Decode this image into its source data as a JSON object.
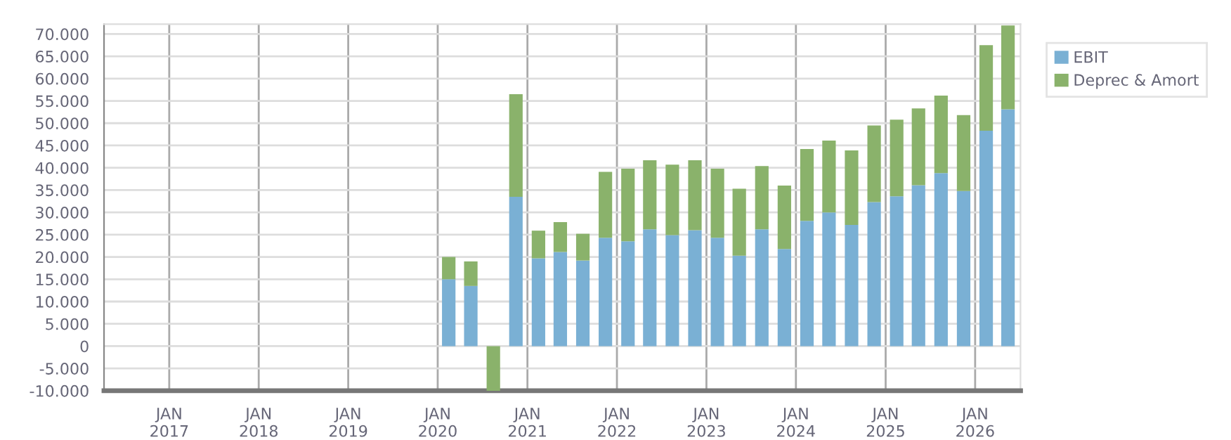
{
  "chart_data": {
    "type": "bar",
    "stacked": true,
    "x": [
      "2020-02-15",
      "2020-05-15",
      "2020-08-15",
      "2020-11-15",
      "2021-02-15",
      "2021-05-15",
      "2021-08-15",
      "2021-11-15",
      "2022-02-15",
      "2022-05-15",
      "2022-08-15",
      "2022-11-15",
      "2023-02-15",
      "2023-05-15",
      "2023-08-15",
      "2023-11-15",
      "2024-02-15",
      "2024-05-15",
      "2024-08-15",
      "2024-11-15",
      "2025-02-15",
      "2025-05-15",
      "2025-08-15",
      "2025-11-15",
      "2026-02-15",
      "2026-05-15"
    ],
    "series": [
      {
        "name": "EBIT",
        "color": "#7ab0d4",
        "values": [
          15000,
          13500,
          0,
          33500,
          19700,
          21100,
          19200,
          24300,
          23500,
          26200,
          24900,
          26000,
          24300,
          20300,
          26200,
          21800,
          28100,
          30000,
          27200,
          32300,
          33600,
          36100,
          38800,
          34800,
          48300,
          53100
        ]
      },
      {
        "name": "Deprec & Amort",
        "color": "#8ab26b",
        "values": [
          5000,
          5500,
          -10000,
          23000,
          6200,
          6700,
          6000,
          14800,
          16300,
          15500,
          15800,
          15700,
          15500,
          15000,
          14200,
          14200,
          16100,
          16100,
          16700,
          17200,
          17200,
          17200,
          17400,
          17000,
          19200,
          18800
        ]
      }
    ],
    "xlim": [
      "2016-04-10",
      "2026-07-05"
    ],
    "xticks": [
      {
        "value": "2017-01-01",
        "label": "JAN\n2017"
      },
      {
        "value": "2018-01-01",
        "label": "JAN\n2018"
      },
      {
        "value": "2019-01-01",
        "label": "JAN\n2019"
      },
      {
        "value": "2020-01-01",
        "label": "JAN\n2020"
      },
      {
        "value": "2021-01-01",
        "label": "JAN\n2021"
      },
      {
        "value": "2022-01-01",
        "label": "JAN\n2022"
      },
      {
        "value": "2023-01-01",
        "label": "JAN\n2023"
      },
      {
        "value": "2024-01-01",
        "label": "JAN\n2024"
      },
      {
        "value": "2025-01-01",
        "label": "JAN\n2025"
      },
      {
        "value": "2026-01-01",
        "label": "JAN\n2026"
      }
    ],
    "ylim": [
      -10000,
      72200
    ],
    "yticks": [
      {
        "value": -10000,
        "label": "-10.000"
      },
      {
        "value": -5000,
        "label": "-5.000"
      },
      0,
      {
        "value": 5000,
        "label": "5.000"
      },
      {
        "value": 10000,
        "label": "10.000"
      },
      {
        "value": 15000,
        "label": "15.000"
      },
      {
        "value": 20000,
        "label": "20.000"
      },
      {
        "value": 25000,
        "label": "25.000"
      },
      {
        "value": 30000,
        "label": "30.000"
      },
      {
        "value": 35000,
        "label": "35.000"
      },
      {
        "value": 40000,
        "label": "40.000"
      },
      {
        "value": 45000,
        "label": "45.000"
      },
      {
        "value": 50000,
        "label": "50.000"
      },
      {
        "value": 55000,
        "label": "55.000"
      },
      {
        "value": 60000,
        "label": "60.000"
      },
      {
        "value": 65000,
        "label": "65.000"
      },
      {
        "value": 70000,
        "label": "70.000"
      }
    ],
    "grid": true,
    "legend": "top right"
  }
}
